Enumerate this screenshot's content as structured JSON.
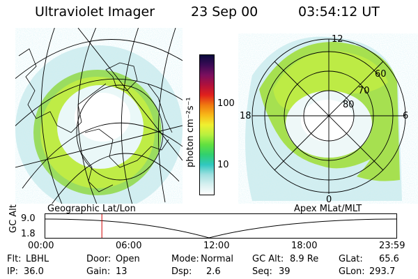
{
  "header": {
    "instrument": "Ultraviolet Imager",
    "date": "23 Sep 00",
    "time": "03:54:12 UT"
  },
  "colorbar": {
    "unit_label": "photon cm⁻²s⁻¹",
    "tick_labels": [
      "100",
      "10"
    ],
    "colors": [
      "#0a0a3c",
      "#3b0a55",
      "#7a0f5e",
      "#b0103c",
      "#e0201c",
      "#f07810",
      "#f8b818",
      "#f0f030",
      "#b8f040",
      "#60e040",
      "#30d070",
      "#30c8c0",
      "#a0e0e0",
      "#d8f0f0",
      "#ffffff"
    ]
  },
  "left_panel": {
    "label": "Geographic Lat/Lon"
  },
  "right_panel": {
    "label": "Apex MLat/MLT",
    "mlt_labels": [
      "12",
      "18",
      "6",
      "0"
    ],
    "lat_labels": [
      "60",
      "70",
      "80"
    ]
  },
  "altitude_plot": {
    "axis_label": "GC Alt",
    "y_ticks": [
      "9.0",
      "1.8"
    ],
    "x_ticks": [
      "00:00",
      "06:00",
      "12:00",
      "18:00",
      "23:59"
    ],
    "marker_time_hours": 3.9,
    "marker_color": "#d00000"
  },
  "footer": {
    "row1": [
      {
        "key": "Flt:",
        "value": "LBHL"
      },
      {
        "key": "Door:",
        "value": "Open"
      },
      {
        "key": "Mode:",
        "value": "Normal"
      },
      {
        "key": "GC Alt:",
        "value": "8.9 Re"
      },
      {
        "key": "GLat:",
        "value": "65.6"
      }
    ],
    "row2": [
      {
        "key": "IP:",
        "value": "36.0"
      },
      {
        "key": "Gain:",
        "value": "13"
      },
      {
        "key": "Dsp:",
        "value": "2.6"
      },
      {
        "key": "Seq:",
        "value": "39"
      },
      {
        "key": "GLon:",
        "value": "293.7"
      }
    ]
  }
}
